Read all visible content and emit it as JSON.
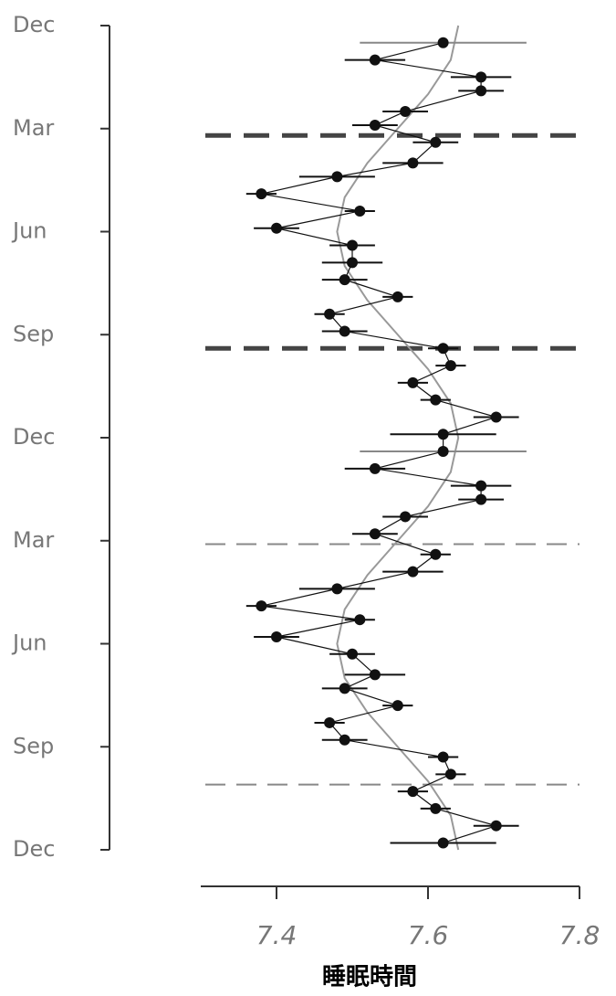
{
  "chart_data": {
    "type": "dotline",
    "xlabel": "睡眠時間",
    "xlim": [
      7.3,
      7.8
    ],
    "xticks": [
      7.4,
      7.6,
      7.8
    ],
    "ylim": [
      0,
      24
    ],
    "yticks": [
      {
        "value": 0,
        "label": "Dec"
      },
      {
        "value": 3,
        "label": "Mar"
      },
      {
        "value": 6,
        "label": "Jun"
      },
      {
        "value": 9,
        "label": "Sep"
      },
      {
        "value": 12,
        "label": "Dec"
      },
      {
        "value": 15,
        "label": "Mar"
      },
      {
        "value": 18,
        "label": "Jun"
      },
      {
        "value": 21,
        "label": "Sep"
      },
      {
        "value": 24,
        "label": "Dec"
      }
    ],
    "hlines": [
      3.2,
      9.4,
      15.1,
      22.1
    ],
    "y": [
      0.5,
      1.0,
      1.5,
      1.9,
      2.5,
      2.9,
      3.4,
      4.0,
      4.4,
      4.9,
      5.4,
      5.9,
      6.4,
      6.9,
      7.4,
      7.9,
      8.4,
      8.9,
      9.4,
      9.9,
      10.4,
      10.9,
      11.4,
      11.9,
      12.4,
      12.9,
      13.4,
      13.8,
      14.3,
      14.8,
      15.4,
      15.9,
      16.4,
      16.9,
      17.3,
      17.8,
      18.3,
      18.9,
      19.3,
      19.8,
      20.3,
      20.8,
      21.3,
      21.8,
      22.3,
      22.8,
      23.3,
      23.8
    ],
    "values": [
      7.62,
      7.53,
      7.67,
      7.67,
      7.57,
      7.53,
      7.61,
      7.58,
      7.48,
      7.38,
      7.51,
      7.4,
      7.5,
      7.5,
      7.49,
      7.56,
      7.47,
      7.49,
      7.62,
      7.63,
      7.58,
      7.61,
      7.69,
      7.62,
      7.62,
      7.53,
      7.67,
      7.67,
      7.57,
      7.53,
      7.61,
      7.58,
      7.48,
      7.38,
      7.51,
      7.4,
      7.5,
      7.53,
      7.49,
      7.56,
      7.47,
      7.49,
      7.62,
      7.63,
      7.58,
      7.61,
      7.69,
      7.62
    ],
    "errors": [
      0.11,
      0.04,
      0.04,
      0.03,
      0.03,
      0.03,
      0.03,
      0.04,
      0.05,
      0.02,
      0.02,
      0.03,
      0.03,
      0.04,
      0.03,
      0.02,
      0.02,
      0.03,
      0.02,
      0.02,
      0.02,
      0.02,
      0.03,
      0.07,
      0.11,
      0.04,
      0.04,
      0.03,
      0.03,
      0.03,
      0.02,
      0.04,
      0.05,
      0.02,
      0.02,
      0.03,
      0.03,
      0.04,
      0.03,
      0.02,
      0.02,
      0.03,
      0.02,
      0.02,
      0.02,
      0.02,
      0.03,
      0.07
    ],
    "trend_y": [
      0,
      1,
      2,
      3,
      4,
      5,
      6,
      7,
      8,
      9,
      10,
      11,
      12,
      13,
      14,
      15,
      16,
      17,
      18,
      19,
      20,
      21,
      22,
      23,
      24
    ],
    "trend": [
      7.64,
      7.63,
      7.6,
      7.56,
      7.52,
      7.49,
      7.48,
      7.49,
      7.52,
      7.56,
      7.6,
      7.63,
      7.64,
      7.63,
      7.6,
      7.56,
      7.52,
      7.49,
      7.48,
      7.49,
      7.52,
      7.56,
      7.6,
      7.63,
      7.64
    ],
    "color": "#111111",
    "trend_color": "#999999"
  }
}
